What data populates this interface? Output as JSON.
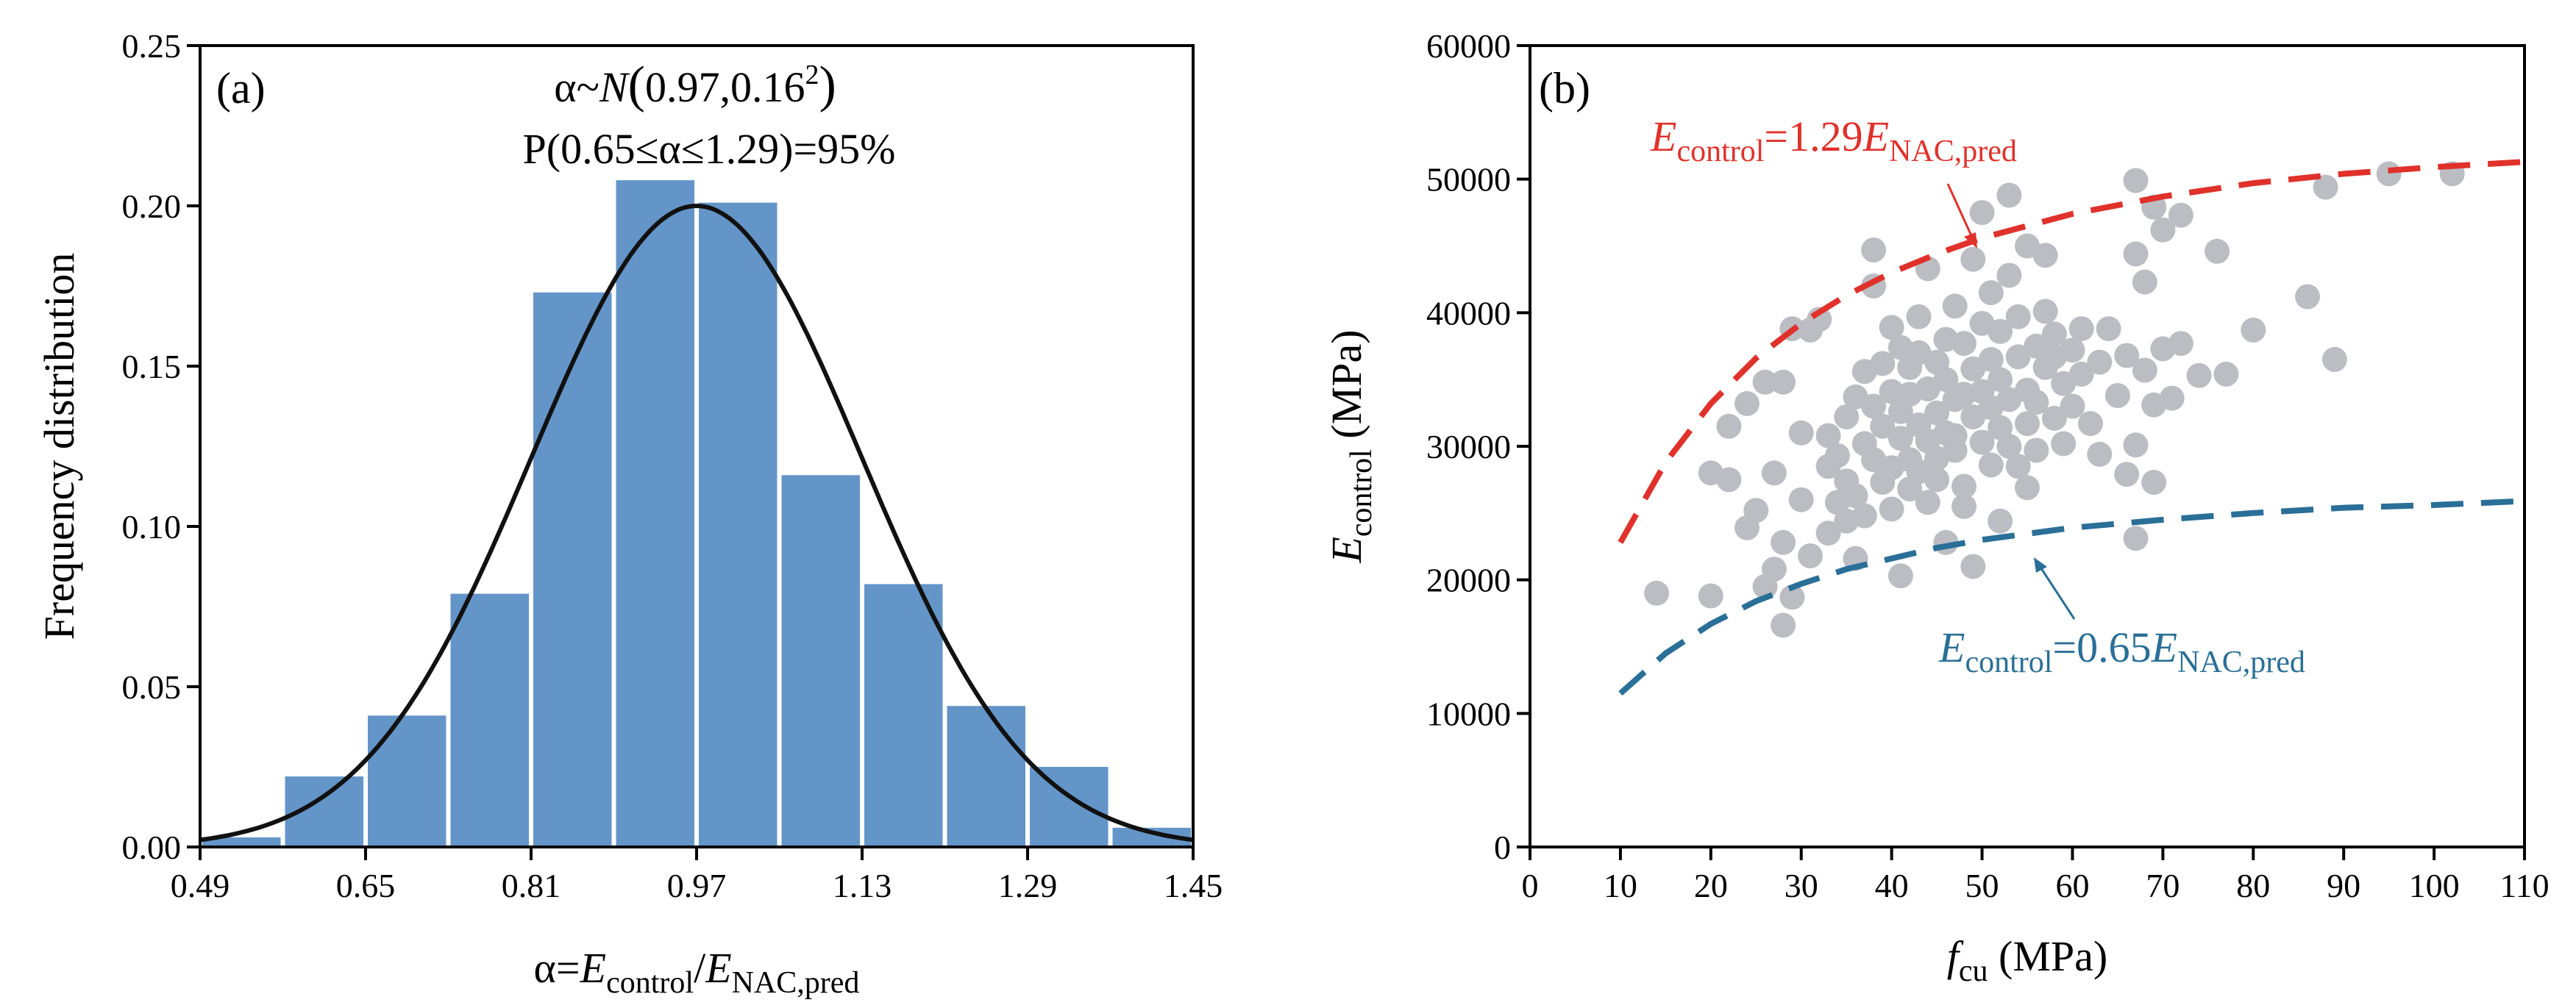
{
  "chart_data": [
    {
      "panel_label": "(a)",
      "type": "bar",
      "subtype": "histogram with normal fit",
      "bins": [
        {
          "from": 0.49,
          "to": 0.57,
          "value": 0.003
        },
        {
          "from": 0.57,
          "to": 0.65,
          "value": 0.022
        },
        {
          "from": 0.65,
          "to": 0.73,
          "value": 0.041
        },
        {
          "from": 0.73,
          "to": 0.81,
          "value": 0.079
        },
        {
          "from": 0.81,
          "to": 0.89,
          "value": 0.173
        },
        {
          "from": 0.89,
          "to": 0.97,
          "value": 0.208
        },
        {
          "from": 0.97,
          "to": 1.05,
          "value": 0.201
        },
        {
          "from": 1.05,
          "to": 1.13,
          "value": 0.116
        },
        {
          "from": 1.13,
          "to": 1.21,
          "value": 0.082
        },
        {
          "from": 1.21,
          "to": 1.29,
          "value": 0.044
        },
        {
          "from": 1.29,
          "to": 1.37,
          "value": 0.025
        },
        {
          "from": 1.37,
          "to": 1.45,
          "value": 0.006
        }
      ],
      "fit": {
        "distribution": "normal",
        "mean": 0.97,
        "sd": 0.16,
        "peak": 0.2,
        "color": "#111111"
      },
      "bar_color": "#6495c8",
      "xlim": [
        0.49,
        1.45
      ],
      "ylim": [
        0,
        0.25
      ],
      "x_ticks": [
        "0.49",
        "0.65",
        "0.81",
        "0.97",
        "1.13",
        "1.29",
        "1.45"
      ],
      "y_ticks": [
        "0.00",
        "0.05",
        "0.10",
        "0.15",
        "0.20",
        "0.25"
      ],
      "ylabel": "Frequency distribution",
      "xlabel": {
        "alpha": "α=",
        "e1": "E",
        "e1_sub": "control",
        "slash": "/",
        "e2": "E",
        "e2_sub": "NAC,pred"
      },
      "annotation_line1": {
        "lhs": "α~",
        "n": "N",
        "paren_open": "(",
        "args": "0.97,0.16",
        "sup": "2",
        "paren_close": ")"
      },
      "annotation_line2": "P(0.65≤α≤1.29)=95%"
    },
    {
      "panel_label": "(b)",
      "type": "scatter",
      "point_color": "#bbbdc3",
      "xlim": [
        0,
        110
      ],
      "ylim": [
        0,
        60000
      ],
      "x_ticks": [
        "0",
        "10",
        "20",
        "30",
        "40",
        "50",
        "60",
        "70",
        "80",
        "90",
        "100",
        "110"
      ],
      "y_ticks": [
        "0",
        "10000",
        "20000",
        "30000",
        "40000",
        "50000",
        "60000"
      ],
      "xlabel": {
        "f": "f",
        "sub": "cu",
        "unit": " (MPa)"
      },
      "ylabel": {
        "e": "E",
        "sub": "control",
        "unit": " (MPa)"
      },
      "curves": [
        {
          "color": "#e0312b",
          "factor": "1.29",
          "label": {
            "e1": "E",
            "sub1": "control",
            "eq": "=1.29",
            "e2": "E",
            "sub2": "NAC,pred"
          },
          "points": [
            [
              10,
              22800
            ],
            [
              15,
              28800
            ],
            [
              20,
              33200
            ],
            [
              25,
              36600
            ],
            [
              30,
              39200
            ],
            [
              35,
              41300
            ],
            [
              40,
              43000
            ],
            [
              45,
              44400
            ],
            [
              50,
              45600
            ],
            [
              60,
              47400
            ],
            [
              70,
              48700
            ],
            [
              80,
              49700
            ],
            [
              90,
              50400
            ],
            [
              100,
              50900
            ],
            [
              110,
              51300
            ]
          ]
        },
        {
          "color": "#2a6f97",
          "factor": "0.65",
          "label": {
            "e1": "E",
            "sub1": "control",
            "eq": "=0.65",
            "e2": "E",
            "sub2": "NAC,pred"
          },
          "points": [
            [
              10,
              11500
            ],
            [
              15,
              14500
            ],
            [
              20,
              16700
            ],
            [
              25,
              18400
            ],
            [
              30,
              19700
            ],
            [
              35,
              20800
            ],
            [
              40,
              21600
            ],
            [
              45,
              22400
            ],
            [
              50,
              23000
            ],
            [
              60,
              23900
            ],
            [
              70,
              24500
            ],
            [
              80,
              25000
            ],
            [
              90,
              25400
            ],
            [
              100,
              25600
            ],
            [
              110,
              25900
            ]
          ]
        }
      ],
      "points": [
        [
          14,
          19000
        ],
        [
          20,
          18800
        ],
        [
          20,
          28000
        ],
        [
          22,
          27500
        ],
        [
          22,
          31500
        ],
        [
          24,
          23900
        ],
        [
          24,
          33200
        ],
        [
          25,
          25200
        ],
        [
          26,
          19500
        ],
        [
          26,
          34800
        ],
        [
          27,
          28000
        ],
        [
          27,
          20800
        ],
        [
          28,
          16600
        ],
        [
          28,
          22800
        ],
        [
          28,
          34800
        ],
        [
          29,
          18700
        ],
        [
          29,
          38800
        ],
        [
          30,
          26000
        ],
        [
          30,
          31000
        ],
        [
          31,
          21800
        ],
        [
          31,
          38700
        ],
        [
          32,
          39500
        ],
        [
          33,
          23500
        ],
        [
          33,
          28500
        ],
        [
          33,
          30800
        ],
        [
          34,
          25800
        ],
        [
          34,
          29300
        ],
        [
          35,
          24400
        ],
        [
          35,
          27400
        ],
        [
          35,
          32200
        ],
        [
          36,
          33700
        ],
        [
          36,
          21600
        ],
        [
          36,
          26300
        ],
        [
          37,
          35600
        ],
        [
          37,
          30200
        ],
        [
          37,
          24800
        ],
        [
          38,
          29000
        ],
        [
          38,
          33000
        ],
        [
          38,
          44700
        ],
        [
          38,
          42000
        ],
        [
          39,
          27300
        ],
        [
          39,
          36200
        ],
        [
          39,
          31500
        ],
        [
          40,
          28400
        ],
        [
          40,
          34100
        ],
        [
          40,
          25300
        ],
        [
          40,
          38900
        ],
        [
          41,
          30600
        ],
        [
          41,
          20300
        ],
        [
          41,
          37400
        ],
        [
          41,
          32600
        ],
        [
          42,
          29000
        ],
        [
          42,
          33900
        ],
        [
          42,
          35900
        ],
        [
          42,
          26800
        ],
        [
          43,
          31600
        ],
        [
          43,
          39700
        ],
        [
          43,
          28100
        ],
        [
          43,
          37000
        ],
        [
          44,
          30400
        ],
        [
          44,
          34300
        ],
        [
          44,
          25800
        ],
        [
          44,
          43300
        ],
        [
          45,
          32500
        ],
        [
          45,
          27500
        ],
        [
          45,
          36300
        ],
        [
          45,
          29100
        ],
        [
          46,
          31000
        ],
        [
          46,
          35000
        ],
        [
          46,
          38000
        ],
        [
          46,
          22800
        ],
        [
          47,
          33500
        ],
        [
          47,
          29700
        ],
        [
          47,
          30800
        ],
        [
          47,
          40500
        ],
        [
          48,
          33900
        ],
        [
          48,
          27000
        ],
        [
          48,
          37700
        ],
        [
          48,
          25500
        ],
        [
          49,
          32200
        ],
        [
          49,
          35800
        ],
        [
          49,
          44000
        ],
        [
          49,
          21000
        ],
        [
          50,
          30300
        ],
        [
          50,
          34100
        ],
        [
          50,
          39200
        ],
        [
          50,
          47500
        ],
        [
          51,
          28600
        ],
        [
          51,
          32900
        ],
        [
          51,
          36500
        ],
        [
          51,
          41500
        ],
        [
          52,
          31400
        ],
        [
          52,
          35000
        ],
        [
          52,
          38600
        ],
        [
          52,
          24400
        ],
        [
          53,
          33500
        ],
        [
          53,
          30000
        ],
        [
          53,
          48800
        ],
        [
          53,
          42800
        ],
        [
          54,
          36700
        ],
        [
          54,
          28500
        ],
        [
          54,
          39700
        ],
        [
          55,
          34200
        ],
        [
          55,
          31700
        ],
        [
          55,
          45000
        ],
        [
          55,
          26900
        ],
        [
          56,
          37500
        ],
        [
          56,
          33300
        ],
        [
          56,
          29700
        ],
        [
          57,
          35900
        ],
        [
          57,
          40100
        ],
        [
          57,
          44300
        ],
        [
          58,
          32100
        ],
        [
          58,
          36700
        ],
        [
          58,
          38400
        ],
        [
          59,
          34700
        ],
        [
          59,
          30200
        ],
        [
          60,
          37200
        ],
        [
          60,
          33000
        ],
        [
          61,
          35400
        ],
        [
          61,
          38800
        ],
        [
          62,
          31700
        ],
        [
          63,
          36300
        ],
        [
          63,
          29400
        ],
        [
          64,
          38800
        ],
        [
          65,
          33800
        ],
        [
          66,
          36800
        ],
        [
          66,
          27900
        ],
        [
          67,
          44400
        ],
        [
          67,
          49900
        ],
        [
          67,
          30100
        ],
        [
          67,
          23100
        ],
        [
          68,
          35700
        ],
        [
          68,
          42300
        ],
        [
          69,
          47900
        ],
        [
          69,
          33100
        ],
        [
          69,
          27300
        ],
        [
          70,
          37300
        ],
        [
          70,
          46200
        ],
        [
          71,
          33600
        ],
        [
          72,
          47300
        ],
        [
          72,
          37700
        ],
        [
          74,
          35300
        ],
        [
          76,
          44600
        ],
        [
          77,
          35400
        ],
        [
          80,
          38700
        ],
        [
          86,
          41200
        ],
        [
          88,
          49400
        ],
        [
          89,
          36500
        ],
        [
          95,
          50400
        ],
        [
          102,
          50400
        ]
      ]
    }
  ]
}
